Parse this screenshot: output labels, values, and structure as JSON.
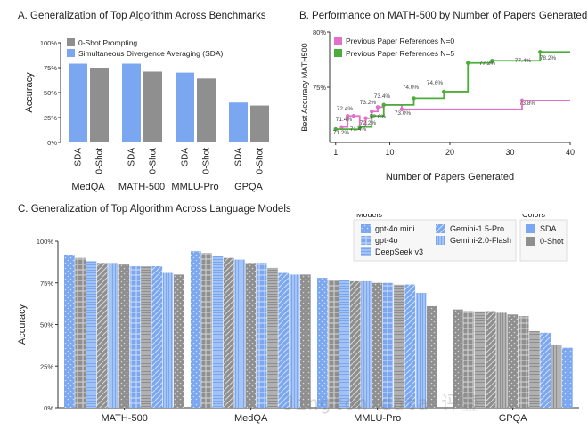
{
  "chart_data": [
    {
      "id": "A",
      "type": "bar",
      "title": "A.   Generalization of Top Algorithm Across Benchmarks",
      "ylabel": "Accuracy",
      "ylim": [
        0,
        100
      ],
      "yticks": [
        "0%",
        "25%",
        "50%",
        "75%",
        "100%"
      ],
      "legend": [
        "0-Shot Prompting",
        "Simultaneous Divergence Averaging (SDA)"
      ],
      "categories": [
        "MedQA",
        "MATH-500",
        "MMLU-Pro",
        "GPQA"
      ],
      "bar_labels": [
        "SDA",
        "0-Shot"
      ],
      "series": [
        {
          "name": "SDA",
          "values": [
            79,
            79,
            70,
            40
          ]
        },
        {
          "name": "0-Shot",
          "values": [
            75,
            71,
            64,
            37
          ]
        }
      ]
    },
    {
      "id": "B",
      "type": "line",
      "title": "B.   Performance on MATH-500 by Number of Papers Generated",
      "xlabel": "Number of Papers Generated",
      "ylabel": "Best Accuracy MATH500",
      "xlim": [
        0,
        40
      ],
      "ylim": [
        70,
        80
      ],
      "xticks": [
        "1",
        "10",
        "20",
        "30",
        "40"
      ],
      "yticks": [
        "75%",
        "80%"
      ],
      "series": [
        {
          "name": "Previous Paper References N=0",
          "points": [
            [
              1,
              71.2
            ],
            [
              2,
              71.4
            ],
            [
              3,
              72.4
            ],
            [
              4,
              72.4
            ],
            [
              5,
              71.4
            ],
            [
              6,
              72.2
            ],
            [
              7,
              72.8
            ],
            [
              8,
              73.2
            ],
            [
              9,
              73.4
            ],
            [
              12,
              73.0
            ],
            [
              32,
              73.8
            ]
          ],
          "labels": [
            "71.4%",
            "72.4%",
            "73.2%",
            "73.4%",
            "71.4%",
            "72.2%",
            "72.8%",
            "73.0%",
            "73.8%"
          ]
        },
        {
          "name": "Previous Paper References N=5",
          "points": [
            [
              1,
              71.2
            ],
            [
              5,
              71.4
            ],
            [
              7,
              72.4
            ],
            [
              9,
              73.4
            ],
            [
              14,
              74.0
            ],
            [
              19,
              74.6
            ],
            [
              23,
              77.2
            ],
            [
              27,
              77.4
            ],
            [
              35,
              78.2
            ]
          ],
          "labels": [
            "71.2%",
            "74.0%",
            "74.6%",
            "77.2%",
            "77.4%",
            "78.2%"
          ]
        }
      ]
    },
    {
      "id": "C",
      "type": "bar",
      "title": "C.   Generalization of Top Algorithm Across Language Models",
      "ylabel": "Accuracy",
      "ylim": [
        0,
        100
      ],
      "yticks": [
        "0%",
        "25%",
        "50%",
        "75%",
        "100%"
      ],
      "categories": [
        "MATH-500",
        "MedQA",
        "MMLU-Pro",
        "GPQA"
      ],
      "legend_models_title": "Models",
      "models": [
        "gpt-4o mini",
        "gpt-4o",
        "DeepSeek v3",
        "Gemini-1.5-Pro",
        "Gemini-2.0-Flash"
      ],
      "legend_colors_title": "Colors",
      "colors_legend": [
        "SDA",
        "0-Shot"
      ],
      "groups": [
        {
          "name": "MATH-500",
          "bars": [
            92,
            90,
            88,
            87,
            87,
            86,
            85,
            85,
            85,
            81,
            80
          ]
        },
        {
          "name": "MedQA",
          "bars": [
            94,
            93,
            91,
            90,
            89,
            87,
            87,
            84,
            81,
            80,
            80
          ]
        },
        {
          "name": "MMLU-Pro",
          "bars": [
            78,
            77,
            77,
            76,
            76,
            75,
            75,
            74,
            74,
            69,
            61
          ]
        },
        {
          "name": "GPQA",
          "bars": [
            59,
            58,
            58,
            58,
            57,
            56,
            55,
            46,
            45,
            38,
            36
          ]
        }
      ]
    }
  ],
  "watermark": "Jington data 评鉴"
}
